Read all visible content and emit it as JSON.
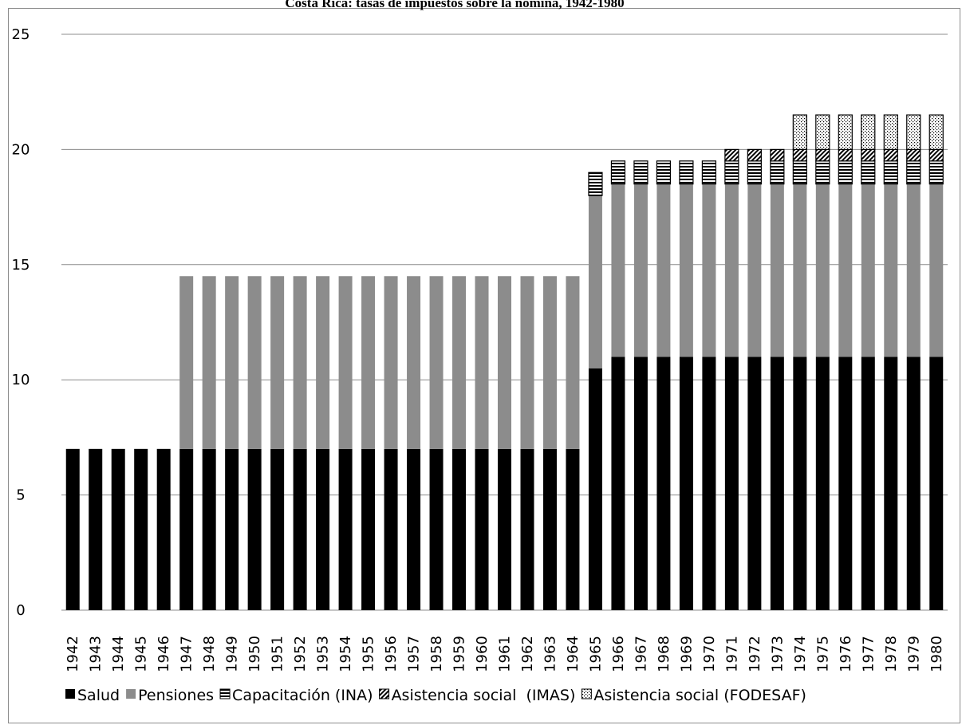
{
  "chart_data": {
    "type": "bar",
    "stacked": true,
    "title": "Costa Rica: tasas de impuestos sobre la nómina, 1942-1980",
    "xlabel": "",
    "ylabel": "",
    "ylim": [
      0,
      25
    ],
    "yticks": [
      "0",
      "5",
      "10",
      "15",
      "20",
      "25"
    ],
    "grid": true,
    "legend_position": "bottom",
    "categories": [
      "1942",
      "1943",
      "1944",
      "1945",
      "1946",
      "1947",
      "1948",
      "1949",
      "1950",
      "1951",
      "1952",
      "1953",
      "1954",
      "1955",
      "1956",
      "1957",
      "1958",
      "1959",
      "1960",
      "1961",
      "1962",
      "1963",
      "1964",
      "1965",
      "1966",
      "1967",
      "1968",
      "1969",
      "1970",
      "1971",
      "1972",
      "1973",
      "1974",
      "1975",
      "1976",
      "1977",
      "1978",
      "1979",
      "1980"
    ],
    "series": [
      {
        "name": "Salud",
        "color": "#000000",
        "pattern": "solid",
        "values": [
          7,
          7,
          7,
          7,
          7,
          7,
          7,
          7,
          7,
          7,
          7,
          7,
          7,
          7,
          7,
          7,
          7,
          7,
          7,
          7,
          7,
          7,
          7,
          10.5,
          11,
          11,
          11,
          11,
          11,
          11,
          11,
          11,
          11,
          11,
          11,
          11,
          11,
          11,
          11
        ]
      },
      {
        "name": "Pensiones",
        "color": "#8c8c8c",
        "pattern": "solid",
        "values": [
          0,
          0,
          0,
          0,
          0,
          7.5,
          7.5,
          7.5,
          7.5,
          7.5,
          7.5,
          7.5,
          7.5,
          7.5,
          7.5,
          7.5,
          7.5,
          7.5,
          7.5,
          7.5,
          7.5,
          7.5,
          7.5,
          7.5,
          7.5,
          7.5,
          7.5,
          7.5,
          7.5,
          7.5,
          7.5,
          7.5,
          7.5,
          7.5,
          7.5,
          7.5,
          7.5,
          7.5,
          7.5
        ]
      },
      {
        "name": "Capacitación (INA)",
        "color": "#000000",
        "pattern": "horizontal",
        "values": [
          0,
          0,
          0,
          0,
          0,
          0,
          0,
          0,
          0,
          0,
          0,
          0,
          0,
          0,
          0,
          0,
          0,
          0,
          0,
          0,
          0,
          0,
          0,
          1,
          1,
          1,
          1,
          1,
          1,
          1,
          1,
          1,
          1,
          1,
          1,
          1,
          1,
          1,
          1
        ]
      },
      {
        "name": "Asistencia social  (IMAS)",
        "color": "#000000",
        "pattern": "diagonal",
        "values": [
          0,
          0,
          0,
          0,
          0,
          0,
          0,
          0,
          0,
          0,
          0,
          0,
          0,
          0,
          0,
          0,
          0,
          0,
          0,
          0,
          0,
          0,
          0,
          0,
          0,
          0,
          0,
          0,
          0,
          0.5,
          0.5,
          0.5,
          0.5,
          0.5,
          0.5,
          0.5,
          0.5,
          0.5,
          0.5
        ]
      },
      {
        "name": "Asistencia social (FODESAF)",
        "color": "#000000",
        "pattern": "dots",
        "values": [
          0,
          0,
          0,
          0,
          0,
          0,
          0,
          0,
          0,
          0,
          0,
          0,
          0,
          0,
          0,
          0,
          0,
          0,
          0,
          0,
          0,
          0,
          0,
          0,
          0,
          0,
          0,
          0,
          0,
          0,
          0,
          0,
          1.5,
          1.5,
          1.5,
          1.5,
          1.5,
          1.5,
          1.5
        ]
      }
    ]
  }
}
